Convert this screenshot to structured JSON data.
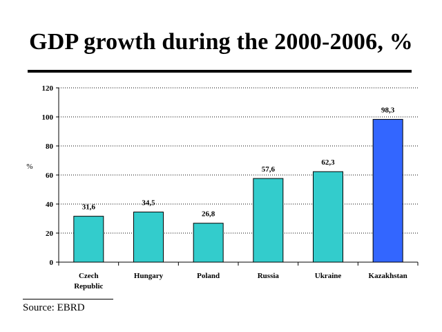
{
  "title": "GDP growth during the 2000-2006, %",
  "source": "Source: EBRD",
  "colors": {
    "regular": "#33CCCC",
    "highlight": "#3366FF",
    "grid": "#000000"
  },
  "chart_data": {
    "type": "bar",
    "title": "GDP growth during the 2000-2006, %",
    "ylabel": "%",
    "xlabel": "",
    "ylim": [
      0,
      120
    ],
    "yticks": [
      "0",
      "20",
      "40",
      "60",
      "80",
      "100",
      "120"
    ],
    "categories": [
      "Czech\nRepublic",
      "Hungary",
      "Poland",
      "Russia",
      "Ukraine",
      "Kazakhstan"
    ],
    "values": [
      31.6,
      34.5,
      26.8,
      57.6,
      62.3,
      98.3
    ],
    "value_labels": [
      "31,6",
      "34,5",
      "26,8",
      "57,6",
      "62,3",
      "98,3"
    ],
    "highlight": [
      "Kazakhstan"
    ],
    "grid": "horizontal dotted",
    "legend": "none"
  }
}
